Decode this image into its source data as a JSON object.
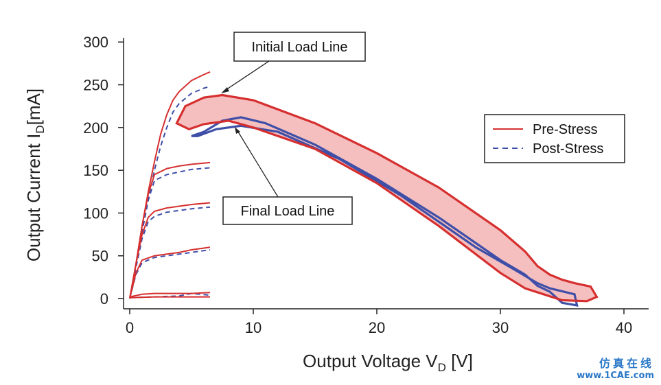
{
  "chart_data": {
    "type": "line",
    "title": "",
    "xlabel": "Output Voltage V",
    "xlabel_sub": "D",
    "xlabel_unit": " [V]",
    "ylabel": "Output Current I",
    "ylabel_sub": "D",
    "ylabel_unit": "[mA]",
    "xlim": [
      -0.5,
      42
    ],
    "ylim": [
      -12,
      305
    ],
    "xticks": [
      0,
      10,
      20,
      30,
      40
    ],
    "yticks": [
      0,
      50,
      100,
      150,
      200,
      250,
      300
    ],
    "grid": false,
    "legend_position": "right",
    "colors": {
      "pre": "#d62f2f",
      "post": "#3f4fa8",
      "band": "#f4b8b8"
    },
    "series": [
      {
        "name": "Pre-Stress",
        "style": "solid",
        "curves": [
          [
            [
              0,
              0
            ],
            [
              0.5,
              40
            ],
            [
              1,
              85
            ],
            [
              1.5,
              125
            ],
            [
              2,
              160
            ],
            [
              2.5,
              192
            ],
            [
              3,
              215
            ],
            [
              3.5,
              232
            ],
            [
              4,
              242
            ],
            [
              5,
              255
            ],
            [
              6,
              262
            ],
            [
              6.5,
              265
            ]
          ],
          [
            [
              0,
              0
            ],
            [
              0.5,
              40
            ],
            [
              1,
              85
            ],
            [
              1.5,
              122
            ],
            [
              2,
              145
            ],
            [
              3,
              152
            ],
            [
              4,
              155
            ],
            [
              5,
              157
            ],
            [
              6.5,
              159
            ]
          ],
          [
            [
              0,
              0
            ],
            [
              0.5,
              40
            ],
            [
              1,
              75
            ],
            [
              1.5,
              95
            ],
            [
              2,
              102
            ],
            [
              3,
              106
            ],
            [
              4,
              108
            ],
            [
              5,
              110
            ],
            [
              6.5,
              112
            ]
          ],
          [
            [
              0,
              0
            ],
            [
              0.5,
              30
            ],
            [
              1,
              45
            ],
            [
              2,
              50
            ],
            [
              3,
              52
            ],
            [
              4,
              54
            ],
            [
              5,
              57
            ],
            [
              6.5,
              60
            ]
          ],
          [
            [
              0,
              2
            ],
            [
              1,
              5
            ],
            [
              2,
              6
            ],
            [
              3,
              6
            ],
            [
              4,
              6
            ],
            [
              5,
              6
            ],
            [
              6.5,
              7
            ]
          ],
          [
            [
              0,
              1
            ],
            [
              2,
              2
            ],
            [
              4,
              2
            ],
            [
              6.5,
              2
            ]
          ]
        ],
        "load_line_outer": [
          [
            3.8,
            205
          ],
          [
            4.5,
            225
          ],
          [
            6,
            235
          ],
          [
            7.5,
            238
          ],
          [
            10,
            232
          ],
          [
            15,
            205
          ],
          [
            20,
            170
          ],
          [
            25,
            130
          ],
          [
            30,
            80
          ],
          [
            32,
            55
          ],
          [
            33,
            38
          ],
          [
            34,
            28
          ],
          [
            35,
            22
          ],
          [
            36,
            18
          ],
          [
            37.3,
            14
          ],
          [
            37.8,
            2
          ],
          [
            37,
            -3
          ],
          [
            35,
            -2
          ],
          [
            33.5,
            5
          ],
          [
            32,
            12
          ],
          [
            30,
            30
          ],
          [
            25,
            85
          ],
          [
            20,
            135
          ],
          [
            15,
            175
          ],
          [
            10,
            200
          ],
          [
            8,
            208
          ],
          [
            6,
            204
          ],
          [
            4.8,
            198
          ],
          [
            3.8,
            205
          ]
        ]
      },
      {
        "name": "Post-Stress",
        "style": "dashed",
        "curves": [
          [
            [
              0,
              0
            ],
            [
              0.5,
              38
            ],
            [
              1,
              78
            ],
            [
              1.5,
              115
            ],
            [
              2,
              150
            ],
            [
              2.5,
              178
            ],
            [
              3,
              200
            ],
            [
              3.5,
              218
            ],
            [
              4,
              228
            ],
            [
              5,
              240
            ],
            [
              6,
              246
            ],
            [
              6.5,
              248
            ]
          ],
          [
            [
              0,
              0
            ],
            [
              0.5,
              38
            ],
            [
              1,
              80
            ],
            [
              1.5,
              115
            ],
            [
              2,
              138
            ],
            [
              3,
              145
            ],
            [
              4,
              148
            ],
            [
              5,
              151
            ],
            [
              6.5,
              153
            ]
          ],
          [
            [
              0,
              0
            ],
            [
              0.5,
              36
            ],
            [
              1,
              70
            ],
            [
              1.5,
              90
            ],
            [
              2,
              96
            ],
            [
              3,
              101
            ],
            [
              4,
              103
            ],
            [
              5,
              105
            ],
            [
              6.5,
              107
            ]
          ],
          [
            [
              0,
              0
            ],
            [
              0.5,
              28
            ],
            [
              1,
              42
            ],
            [
              2,
              48
            ],
            [
              3,
              50
            ],
            [
              4,
              52
            ],
            [
              5,
              54
            ],
            [
              6.5,
              57
            ]
          ],
          [
            [
              0,
              1
            ],
            [
              2,
              2
            ],
            [
              4,
              3
            ],
            [
              5,
              6
            ],
            [
              6.5,
              4
            ]
          ]
        ],
        "load_line_outer": [
          [
            5,
            190
          ],
          [
            6,
            195
          ],
          [
            7.5,
            208
          ],
          [
            9,
            212
          ],
          [
            11,
            205
          ],
          [
            15,
            180
          ],
          [
            20,
            140
          ],
          [
            25,
            95
          ],
          [
            30,
            45
          ],
          [
            32,
            28
          ],
          [
            33,
            15
          ],
          [
            34,
            8
          ],
          [
            35,
            -5
          ],
          [
            36.2,
            -8
          ],
          [
            36,
            5
          ],
          [
            34,
            12
          ],
          [
            33,
            18
          ],
          [
            31,
            35
          ],
          [
            28,
            60
          ],
          [
            22,
            120
          ],
          [
            17,
            163
          ],
          [
            12,
            195
          ],
          [
            9,
            202
          ],
          [
            7,
            198
          ],
          [
            5.5,
            190
          ],
          [
            5,
            190
          ]
        ]
      }
    ],
    "annotations": [
      {
        "text": "Initial Load Line",
        "points_to": [
          7.5,
          238
        ]
      },
      {
        "text": "Final Load Line",
        "points_to": [
          8.5,
          203
        ]
      }
    ]
  },
  "watermark": {
    "line1": "仿真在线",
    "line2": "www.1CAE.com"
  }
}
